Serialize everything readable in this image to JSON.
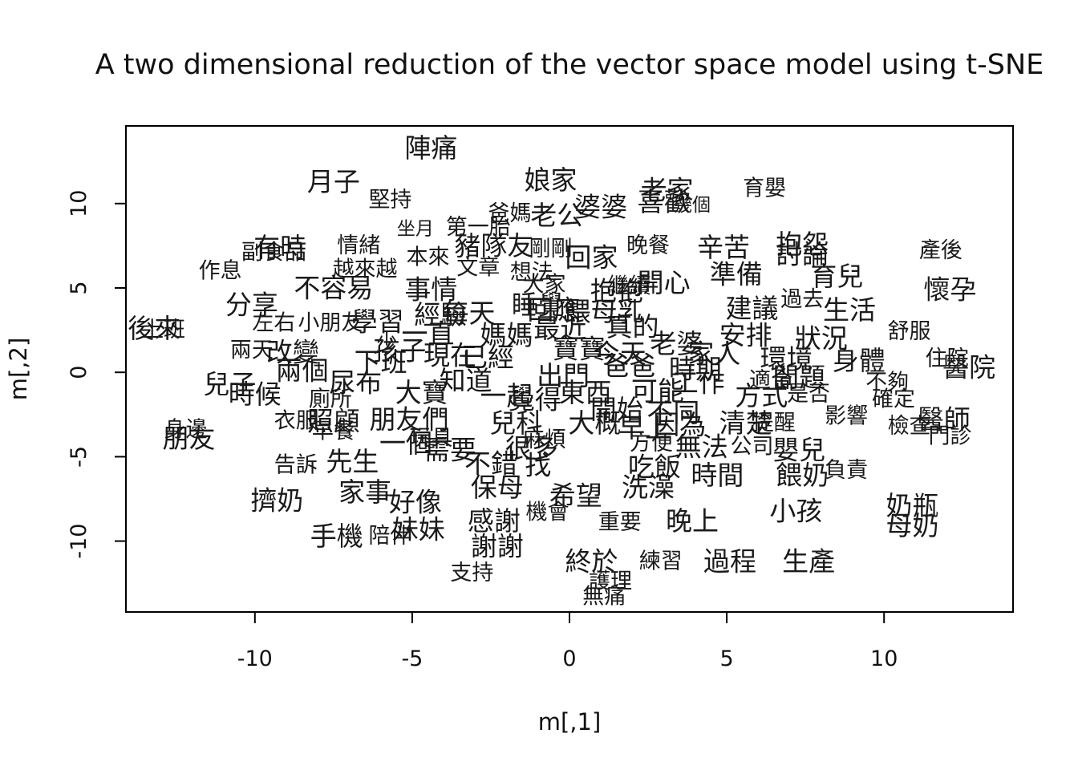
{
  "chart_data": {
    "type": "scatter",
    "title": "A two dimensional reduction of the vector space model using t-SNE",
    "xlabel": "m[,1]",
    "ylabel": "m[,2]",
    "xlim": [
      -14.1,
      14.1
    ],
    "ylim": [
      -14.2,
      14.6
    ],
    "xticks": [
      -10,
      -5,
      0,
      5,
      10
    ],
    "yticks": [
      -10,
      -5,
      0,
      5,
      10
    ],
    "xtick_labels": [
      "-10",
      "-5",
      "0",
      "5",
      "10"
    ],
    "ytick_labels": [
      "-10",
      "-5",
      "0",
      "5",
      "10"
    ],
    "points": [
      {
        "label": "陣痛",
        "x": -4.4,
        "y": 13.3,
        "size": "l"
      },
      {
        "label": "月子",
        "x": -7.5,
        "y": 11.3,
        "size": "l"
      },
      {
        "label": "堅持",
        "x": -5.7,
        "y": 10.2,
        "size": "m"
      },
      {
        "label": "娘家",
        "x": -0.6,
        "y": 11.4,
        "size": "l"
      },
      {
        "label": "婆婆",
        "x": 1.0,
        "y": 9.8,
        "size": "l"
      },
      {
        "label": "老公",
        "x": -0.4,
        "y": 9.3,
        "size": "l"
      },
      {
        "label": "爸媽",
        "x": -1.9,
        "y": 9.4,
        "size": "m"
      },
      {
        "label": "老家",
        "x": 3.1,
        "y": 10.8,
        "size": "l"
      },
      {
        "label": "喜歡",
        "x": 3.0,
        "y": 10.1,
        "size": "l"
      },
      {
        "label": "幾個",
        "x": 3.9,
        "y": 9.9,
        "size": "s"
      },
      {
        "label": "育嬰",
        "x": 6.2,
        "y": 10.9,
        "size": "m"
      },
      {
        "label": "坐月",
        "x": -4.9,
        "y": 8.5,
        "size": "s"
      },
      {
        "label": "第一胎",
        "x": -2.9,
        "y": 8.6,
        "size": "m"
      },
      {
        "label": "豬隊友",
        "x": -2.4,
        "y": 7.5,
        "size": "l"
      },
      {
        "label": "剛剛",
        "x": -0.6,
        "y": 7.3,
        "size": "m"
      },
      {
        "label": "回家",
        "x": 0.7,
        "y": 6.8,
        "size": "l"
      },
      {
        "label": "晚餐",
        "x": 2.5,
        "y": 7.5,
        "size": "m"
      },
      {
        "label": "辛苦",
        "x": 4.9,
        "y": 7.4,
        "size": "l"
      },
      {
        "label": "抱怨",
        "x": 7.4,
        "y": 7.6,
        "size": "l"
      },
      {
        "label": "討論",
        "x": 7.4,
        "y": 7.0,
        "size": "l"
      },
      {
        "label": "產後",
        "x": 11.8,
        "y": 7.2,
        "size": "m"
      },
      {
        "label": "有時",
        "x": -9.2,
        "y": 7.4,
        "size": "l"
      },
      {
        "label": "副食品",
        "x": -9.4,
        "y": 7.1,
        "size": "m"
      },
      {
        "label": "情緒",
        "x": -6.7,
        "y": 7.5,
        "size": "m"
      },
      {
        "label": "本來",
        "x": -4.5,
        "y": 6.8,
        "size": "m"
      },
      {
        "label": "越來越",
        "x": -6.5,
        "y": 6.1,
        "size": "m"
      },
      {
        "label": "文章",
        "x": -2.9,
        "y": 6.2,
        "size": "m"
      },
      {
        "label": "想法",
        "x": -1.2,
        "y": 5.9,
        "size": "m"
      },
      {
        "label": "開心",
        "x": 3.0,
        "y": 5.3,
        "size": "l"
      },
      {
        "label": "準備",
        "x": 5.3,
        "y": 5.8,
        "size": "l"
      },
      {
        "label": "育兒",
        "x": 8.5,
        "y": 5.7,
        "size": "l"
      },
      {
        "label": "懷孕",
        "x": 12.1,
        "y": 4.9,
        "size": "l"
      },
      {
        "label": "作息",
        "x": -11.1,
        "y": 6.0,
        "size": "m"
      },
      {
        "label": "不容易",
        "x": -7.5,
        "y": 5.0,
        "size": "l"
      },
      {
        "label": "事情",
        "x": -4.4,
        "y": 4.9,
        "size": "l"
      },
      {
        "label": "大家",
        "x": -0.8,
        "y": 5.2,
        "size": "m"
      },
      {
        "label": "繼續",
        "x": 1.9,
        "y": 5.1,
        "size": "m"
      },
      {
        "label": "建議",
        "x": 5.8,
        "y": 3.8,
        "size": "l"
      },
      {
        "label": "過去",
        "x": 7.4,
        "y": 4.3,
        "size": "m"
      },
      {
        "label": "生活",
        "x": 8.9,
        "y": 3.7,
        "size": "l"
      },
      {
        "label": "分享",
        "x": -10.1,
        "y": 4.0,
        "size": "l"
      },
      {
        "label": "小朋友",
        "x": -7.6,
        "y": 2.9,
        "size": "m"
      },
      {
        "label": "舒服",
        "x": 10.8,
        "y": 2.4,
        "size": "m"
      },
      {
        "label": "後來",
        "x": -13.2,
        "y": 2.6,
        "size": "l"
      },
      {
        "label": "上班",
        "x": -12.9,
        "y": 2.5,
        "size": "m"
      },
      {
        "label": "左右",
        "x": -9.4,
        "y": 2.9,
        "size": "m"
      },
      {
        "label": "兩天",
        "x": -10.1,
        "y": 1.3,
        "size": "m"
      },
      {
        "label": "改變",
        "x": -8.8,
        "y": 1.2,
        "size": "l"
      },
      {
        "label": "狀況",
        "x": 8.0,
        "y": 2.0,
        "size": "l"
      },
      {
        "label": "住院",
        "x": 12.0,
        "y": 0.8,
        "size": "m"
      },
      {
        "label": "醫院",
        "x": 12.7,
        "y": 0.3,
        "size": "l"
      },
      {
        "label": "兒子",
        "x": -10.8,
        "y": -0.7,
        "size": "l"
      },
      {
        "label": "兩個",
        "x": -8.5,
        "y": 0.1,
        "size": "l"
      },
      {
        "label": "身體",
        "x": 9.2,
        "y": 0.7,
        "size": "l"
      },
      {
        "label": "不夠",
        "x": 10.1,
        "y": -0.6,
        "size": "m"
      },
      {
        "label": "確定",
        "x": 10.3,
        "y": -1.6,
        "size": "m"
      },
      {
        "label": "時候",
        "x": -10.0,
        "y": -1.3,
        "size": "l"
      },
      {
        "label": "廁所",
        "x": -7.6,
        "y": -1.6,
        "size": "m"
      },
      {
        "label": "問題",
        "x": 7.3,
        "y": -0.3,
        "size": "l"
      },
      {
        "label": "是否",
        "x": 7.6,
        "y": -1.3,
        "size": "m"
      },
      {
        "label": "衣服",
        "x": -8.7,
        "y": -2.9,
        "size": "m"
      },
      {
        "label": "照顧",
        "x": -7.5,
        "y": -2.9,
        "size": "l"
      },
      {
        "label": "影響",
        "x": 8.8,
        "y": -2.6,
        "size": "m"
      },
      {
        "label": "醫師",
        "x": 11.9,
        "y": -2.8,
        "size": "l"
      },
      {
        "label": "檢查",
        "x": 10.8,
        "y": -3.2,
        "size": "m"
      },
      {
        "label": "門診",
        "x": 12.1,
        "y": -3.8,
        "size": "m"
      },
      {
        "label": "朋友",
        "x": -12.1,
        "y": -3.9,
        "size": "l"
      },
      {
        "label": "身邊",
        "x": -12.2,
        "y": -3.4,
        "size": "m"
      },
      {
        "label": "早餐",
        "x": -7.5,
        "y": -3.5,
        "size": "m"
      },
      {
        "label": "提醒",
        "x": 6.5,
        "y": -3.0,
        "size": "m"
      },
      {
        "label": "公司",
        "x": 5.8,
        "y": -4.4,
        "size": "m"
      },
      {
        "label": "嬰兒",
        "x": 7.3,
        "y": -4.6,
        "size": "l"
      },
      {
        "label": "告訴",
        "x": -8.7,
        "y": -5.5,
        "size": "m"
      },
      {
        "label": "先生",
        "x": -6.9,
        "y": -5.3,
        "size": "l"
      },
      {
        "label": "一個",
        "x": -5.2,
        "y": -4.2,
        "size": "l"
      },
      {
        "label": "需要",
        "x": -3.8,
        "y": -4.6,
        "size": "l"
      },
      {
        "label": "麻煩",
        "x": -0.8,
        "y": -4.0,
        "size": "m"
      },
      {
        "label": "方便",
        "x": 2.6,
        "y": -4.2,
        "size": "m"
      },
      {
        "label": "無法",
        "x": 4.2,
        "y": -4.4,
        "size": "l"
      },
      {
        "label": "餵奶",
        "x": 7.4,
        "y": -6.1,
        "size": "l"
      },
      {
        "label": "負責",
        "x": 8.8,
        "y": -5.8,
        "size": "m"
      },
      {
        "label": "不錯",
        "x": -2.5,
        "y": -5.4,
        "size": "l"
      },
      {
        "label": "找",
        "x": -1.0,
        "y": -5.5,
        "size": "l"
      },
      {
        "label": "吃飯",
        "x": 2.7,
        "y": -5.6,
        "size": "l"
      },
      {
        "label": "時間",
        "x": 4.7,
        "y": -6.1,
        "size": "l"
      },
      {
        "label": "擠奶",
        "x": -9.3,
        "y": -7.6,
        "size": "l"
      },
      {
        "label": "家事",
        "x": -6.5,
        "y": -7.1,
        "size": "l"
      },
      {
        "label": "好像",
        "x": -4.9,
        "y": -7.7,
        "size": "l"
      },
      {
        "label": "保母",
        "x": -2.3,
        "y": -6.8,
        "size": "l"
      },
      {
        "label": "希望",
        "x": 0.2,
        "y": -7.3,
        "size": "l"
      },
      {
        "label": "洗澡",
        "x": 2.5,
        "y": -6.8,
        "size": "l"
      },
      {
        "label": "奶瓶",
        "x": 10.9,
        "y": -7.9,
        "size": "l"
      },
      {
        "label": "手機",
        "x": -7.4,
        "y": -9.7,
        "size": "l"
      },
      {
        "label": "陪伴",
        "x": -5.7,
        "y": -9.7,
        "size": "m"
      },
      {
        "label": "妹妹",
        "x": -4.8,
        "y": -9.3,
        "size": "l"
      },
      {
        "label": "感謝",
        "x": -2.4,
        "y": -8.8,
        "size": "l"
      },
      {
        "label": "機會",
        "x": -0.7,
        "y": -8.3,
        "size": "m"
      },
      {
        "label": "重要",
        "x": 1.6,
        "y": -8.9,
        "size": "m"
      },
      {
        "label": "晚上",
        "x": 3.9,
        "y": -8.8,
        "size": "l"
      },
      {
        "label": "小孩",
        "x": 7.2,
        "y": -8.2,
        "size": "l"
      },
      {
        "label": "母奶",
        "x": 10.9,
        "y": -9.1,
        "size": "l"
      },
      {
        "label": "謝謝",
        "x": -2.3,
        "y": -10.3,
        "size": "l"
      },
      {
        "label": "終於",
        "x": 0.7,
        "y": -11.2,
        "size": "l"
      },
      {
        "label": "練習",
        "x": 2.9,
        "y": -11.2,
        "size": "m"
      },
      {
        "label": "過程",
        "x": 5.1,
        "y": -11.2,
        "size": "l"
      },
      {
        "label": "生產",
        "x": 7.6,
        "y": -11.2,
        "size": "l"
      },
      {
        "label": "支持",
        "x": -3.1,
        "y": -11.9,
        "size": "m"
      },
      {
        "label": "護理",
        "x": 1.3,
        "y": -12.4,
        "size": "m"
      },
      {
        "label": "無痛",
        "x": 1.1,
        "y": -13.3,
        "size": "m"
      },
      {
        "label": "孩子",
        "x": -5.4,
        "y": 1.3,
        "size": "l"
      },
      {
        "label": "媽媽",
        "x": -2.0,
        "y": 2.2,
        "size": "l"
      },
      {
        "label": "寶寶",
        "x": 0.3,
        "y": 1.4,
        "size": "l"
      },
      {
        "label": "爸爸",
        "x": 1.9,
        "y": 0.4,
        "size": "l"
      },
      {
        "label": "老婆",
        "x": 3.4,
        "y": 1.7,
        "size": "l"
      },
      {
        "label": "家人",
        "x": 4.6,
        "y": 1.1,
        "size": "l"
      },
      {
        "label": "工作",
        "x": 4.1,
        "y": -0.6,
        "size": "l"
      },
      {
        "label": "知道",
        "x": -3.3,
        "y": -0.5,
        "size": "l"
      },
      {
        "label": "覺得",
        "x": -1.1,
        "y": -1.6,
        "size": "l"
      },
      {
        "label": "開始",
        "x": 1.5,
        "y": -2.2,
        "size": "l"
      },
      {
        "label": "可能",
        "x": 2.8,
        "y": -1.1,
        "size": "l"
      },
      {
        "label": "因為",
        "x": 3.5,
        "y": -3.1,
        "size": "l"
      },
      {
        "label": "方式",
        "x": 6.1,
        "y": -1.4,
        "size": "l"
      },
      {
        "label": "清楚",
        "x": 5.6,
        "y": -3.0,
        "size": "l"
      },
      {
        "label": "尿布",
        "x": -6.8,
        "y": -0.6,
        "size": "l"
      },
      {
        "label": "大寶",
        "x": -4.7,
        "y": -1.2,
        "size": "l"
      },
      {
        "label": "下班",
        "x": -6.0,
        "y": 0.6,
        "size": "l"
      },
      {
        "label": "朋友們",
        "x": -5.1,
        "y": -2.8,
        "size": "l"
      },
      {
        "label": "玩具",
        "x": -4.4,
        "y": -3.9,
        "size": "m"
      },
      {
        "label": "每天",
        "x": -3.2,
        "y": 3.5,
        "size": "l"
      },
      {
        "label": "睡覺",
        "x": -1.0,
        "y": 4.0,
        "size": "l"
      },
      {
        "label": "餵母乳",
        "x": 1.1,
        "y": 3.6,
        "size": "l"
      },
      {
        "label": "出門",
        "x": -0.2,
        "y": -0.2,
        "size": "l"
      },
      {
        "label": "安排",
        "x": 5.6,
        "y": 2.2,
        "size": "l"
      },
      {
        "label": "環境",
        "x": 6.9,
        "y": 0.8,
        "size": "l"
      },
      {
        "label": "經驗",
        "x": -4.1,
        "y": 3.4,
        "size": "l"
      },
      {
        "label": "學習",
        "x": -6.1,
        "y": 3.0,
        "size": "l"
      },
      {
        "label": "適合",
        "x": 6.4,
        "y": -0.5,
        "size": "m"
      },
      {
        "label": "時期",
        "x": 4.0,
        "y": 0.2,
        "size": "l"
      },
      {
        "label": "抱抱",
        "x": 1.5,
        "y": 4.8,
        "size": "l"
      },
      {
        "label": "很多",
        "x": -1.2,
        "y": -4.5,
        "size": "l"
      },
      {
        "label": "早上",
        "x": 2.4,
        "y": -3.3,
        "size": "l"
      },
      {
        "label": "兒科",
        "x": -1.7,
        "y": -3.0,
        "size": "l"
      },
      {
        "label": "東西",
        "x": 0.5,
        "y": -1.2,
        "size": "l"
      },
      {
        "label": "最近",
        "x": -0.3,
        "y": 2.6,
        "size": "l"
      },
      {
        "label": "真的",
        "x": 2.0,
        "y": 2.7,
        "size": "l"
      },
      {
        "label": "已經",
        "x": -2.6,
        "y": 0.9,
        "size": "l"
      },
      {
        "label": "現在",
        "x": -3.8,
        "y": 1.0,
        "size": "l"
      },
      {
        "label": "不同",
        "x": 3.3,
        "y": -2.4,
        "size": "l"
      },
      {
        "label": "一起",
        "x": -2.0,
        "y": -1.4,
        "size": "l"
      },
      {
        "label": "今天",
        "x": 1.6,
        "y": 1.1,
        "size": "l"
      },
      {
        "label": "大概",
        "x": 0.8,
        "y": -3.0,
        "size": "l"
      },
      {
        "label": "一直",
        "x": -4.5,
        "y": 2.3,
        "size": "l"
      },
      {
        "label": "少",
        "x": -5.8,
        "y": 1.7,
        "size": "m"
      },
      {
        "label": "回應",
        "x": -0.5,
        "y": 3.7,
        "size": "l"
      }
    ]
  }
}
